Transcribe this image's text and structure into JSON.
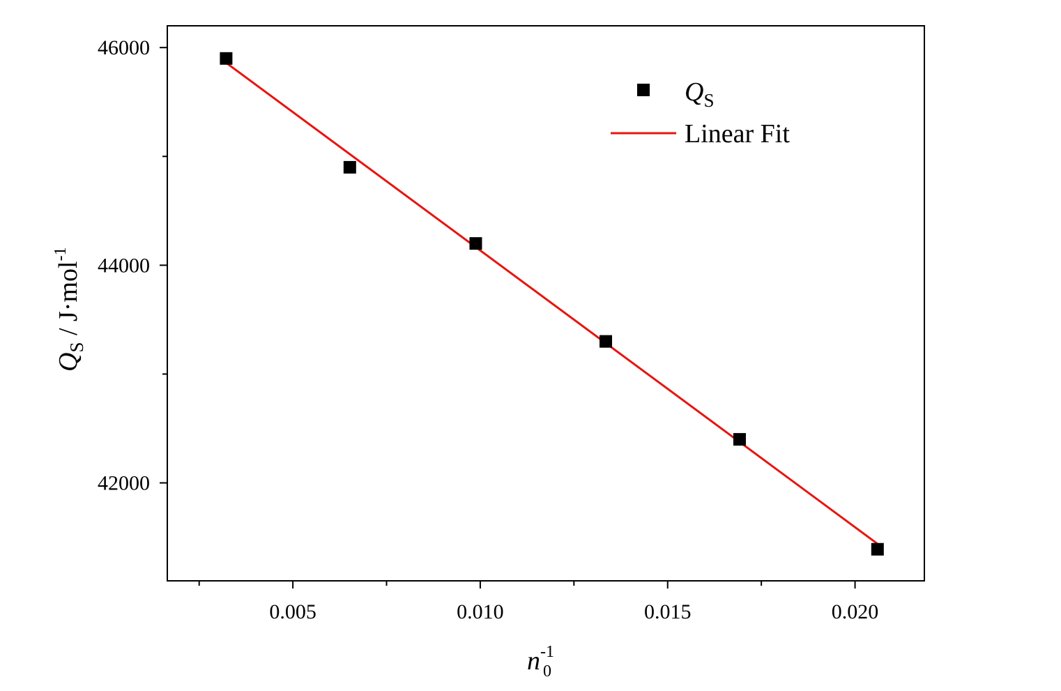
{
  "chart_data": {
    "type": "scatter",
    "xlabel": {
      "base": "n",
      "sub": "0",
      "sup": "-1"
    },
    "ylabel": {
      "base": "Q",
      "sub": "S",
      "rest": " / J·mol",
      "sup": "-1"
    },
    "xlim": [
      0.00165,
      0.02185
    ],
    "ylim": [
      41100,
      46200
    ],
    "x_major_ticks": [
      0.005,
      0.01,
      0.015,
      0.02
    ],
    "x_tick_labels": [
      "0.005",
      "0.010",
      "0.015",
      "0.020"
    ],
    "x_minor_ticks": [
      0.0025,
      0.0075,
      0.0125,
      0.0175
    ],
    "y_major_ticks": [
      42000,
      44000,
      46000
    ],
    "y_tick_labels": [
      "42000",
      "44000",
      "46000"
    ],
    "y_minor_ticks": [
      43000,
      45000
    ],
    "grid": false,
    "legend_position": "top-right",
    "series": [
      {
        "name": "Q_S",
        "legend_label": {
          "base": "Q",
          "sub": "S"
        },
        "kind": "scatter",
        "marker": "square",
        "color": "#000000",
        "x": [
          0.00322,
          0.00652,
          0.00988,
          0.01335,
          0.01692,
          0.0206
        ],
        "y": [
          45900,
          44900,
          44200,
          43300,
          42400,
          41390
        ]
      },
      {
        "name": "Linear Fit",
        "legend_label": {
          "base": "Linear Fit"
        },
        "kind": "line",
        "color": "#e8140f",
        "x": [
          0.00322,
          0.0206
        ],
        "y": [
          45860,
          41440
        ]
      }
    ]
  }
}
